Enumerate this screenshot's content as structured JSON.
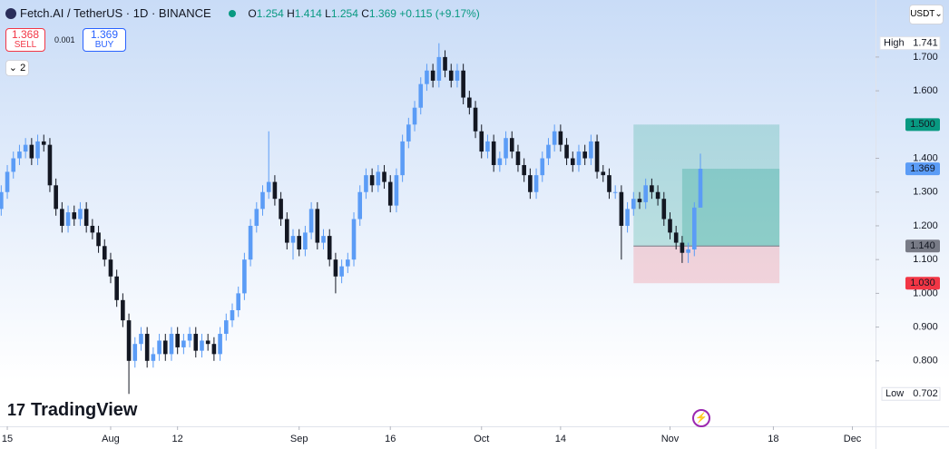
{
  "chart_data": {
    "type": "candlestick",
    "title": "Fetch.AI / TetherUS · 1D · BINANCE",
    "ohlc": [
      {
        "key": "O",
        "value": "1.254"
      },
      {
        "key": "H",
        "value": "1.414"
      },
      {
        "key": "L",
        "value": "1.254"
      },
      {
        "key": "C",
        "value": "1.369"
      }
    ],
    "change": "+0.115 (+9.17%)",
    "sell": {
      "price": "1.368",
      "label": "SELL"
    },
    "spread": "0.001",
    "buy": {
      "price": "1.369",
      "label": "BUY"
    },
    "indicators": "2",
    "currency": "USDT",
    "brand": "TradingView",
    "up_color": "#5b9cf6",
    "down_color": "#131722",
    "x": [
      -1,
      0,
      1,
      2,
      3,
      4,
      5,
      6,
      7,
      8,
      9,
      10,
      11,
      12,
      13,
      14,
      15,
      16,
      17,
      18,
      19,
      20,
      21,
      22,
      23,
      24,
      25,
      26,
      27,
      28,
      29,
      30,
      31,
      32,
      33,
      34,
      35,
      36,
      37,
      38,
      39,
      40,
      41,
      42,
      43,
      44,
      45,
      46,
      47,
      48,
      49,
      50,
      51,
      52,
      53,
      54,
      55,
      56,
      57,
      58,
      59,
      60,
      61,
      62,
      63,
      64,
      65,
      66,
      67,
      68,
      69,
      70,
      71,
      72,
      73,
      74,
      75,
      76,
      77,
      78,
      79,
      80,
      81,
      82,
      83,
      84,
      85,
      86,
      87,
      88,
      89,
      90,
      91,
      92,
      93,
      94,
      95,
      96,
      97,
      98,
      99,
      100,
      101,
      102,
      103,
      104,
      105,
      106,
      107,
      108,
      109,
      110,
      111,
      112,
      113,
      114
    ],
    "open": [
      1.25,
      1.3,
      1.36,
      1.4,
      1.42,
      1.44,
      1.4,
      1.45,
      1.44,
      1.32,
      1.25,
      1.2,
      1.24,
      1.22,
      1.25,
      1.2,
      1.18,
      1.14,
      1.1,
      1.05,
      0.98,
      0.92,
      0.8,
      0.85,
      0.88,
      0.8,
      0.82,
      0.86,
      0.82,
      0.88,
      0.84,
      0.86,
      0.88,
      0.83,
      0.86,
      0.85,
      0.82,
      0.88,
      0.92,
      0.95,
      1.0,
      1.1,
      1.2,
      1.25,
      1.3,
      1.33,
      1.28,
      1.22,
      1.15,
      1.17,
      1.13,
      1.18,
      1.25,
      1.15,
      1.17,
      1.1,
      1.05,
      1.08,
      1.1,
      1.22,
      1.3,
      1.35,
      1.32,
      1.36,
      1.33,
      1.26,
      1.35,
      1.45,
      1.5,
      1.55,
      1.62,
      1.66,
      1.63,
      1.7,
      1.66,
      1.63,
      1.66,
      1.58,
      1.55,
      1.48,
      1.42,
      1.45,
      1.38,
      1.4,
      1.46,
      1.42,
      1.38,
      1.35,
      1.3,
      1.35,
      1.4,
      1.44,
      1.48,
      1.44,
      1.4,
      1.38,
      1.42,
      1.4,
      1.45,
      1.36,
      1.35,
      1.3,
      1.3,
      1.2,
      1.25,
      1.28,
      1.27,
      1.32,
      1.3,
      1.28,
      1.22,
      1.18,
      1.15,
      1.12,
      1.13,
      1.254
    ],
    "high": [
      1.32,
      1.38,
      1.42,
      1.44,
      1.46,
      1.46,
      1.47,
      1.47,
      1.46,
      1.34,
      1.27,
      1.26,
      1.26,
      1.27,
      1.27,
      1.22,
      1.2,
      1.16,
      1.12,
      1.07,
      1.0,
      0.94,
      0.87,
      0.9,
      0.9,
      0.84,
      0.88,
      0.88,
      0.9,
      0.9,
      0.88,
      0.9,
      0.9,
      0.88,
      0.88,
      0.87,
      0.9,
      0.94,
      0.97,
      1.02,
      1.12,
      1.22,
      1.27,
      1.32,
      1.48,
      1.35,
      1.3,
      1.24,
      1.19,
      1.19,
      1.2,
      1.27,
      1.27,
      1.19,
      1.19,
      1.12,
      1.1,
      1.12,
      1.24,
      1.32,
      1.37,
      1.37,
      1.38,
      1.38,
      1.35,
      1.37,
      1.47,
      1.52,
      1.57,
      1.64,
      1.68,
      1.68,
      1.741,
      1.72,
      1.68,
      1.68,
      1.68,
      1.6,
      1.57,
      1.5,
      1.47,
      1.47,
      1.42,
      1.48,
      1.48,
      1.44,
      1.4,
      1.37,
      1.37,
      1.42,
      1.46,
      1.5,
      1.5,
      1.46,
      1.42,
      1.44,
      1.44,
      1.47,
      1.47,
      1.38,
      1.37,
      1.32,
      1.32,
      1.27,
      1.3,
      1.3,
      1.34,
      1.34,
      1.32,
      1.3,
      1.24,
      1.2,
      1.17,
      1.15,
      1.27,
      1.414
    ],
    "low": [
      1.23,
      1.28,
      1.34,
      1.38,
      1.4,
      1.38,
      1.38,
      1.42,
      1.3,
      1.23,
      1.18,
      1.18,
      1.2,
      1.2,
      1.18,
      1.16,
      1.12,
      1.08,
      1.03,
      0.96,
      0.9,
      0.702,
      0.78,
      0.83,
      0.78,
      0.78,
      0.8,
      0.8,
      0.8,
      0.82,
      0.82,
      0.84,
      0.81,
      0.81,
      0.83,
      0.8,
      0.8,
      0.86,
      0.9,
      0.93,
      0.98,
      1.08,
      1.18,
      1.23,
      1.28,
      1.26,
      1.2,
      1.13,
      1.1,
      1.11,
      1.11,
      1.16,
      1.13,
      1.13,
      1.08,
      1.0,
      1.03,
      1.06,
      1.08,
      1.2,
      1.28,
      1.3,
      1.3,
      1.31,
      1.24,
      1.24,
      1.33,
      1.43,
      1.48,
      1.53,
      1.6,
      1.61,
      1.61,
      1.64,
      1.61,
      1.61,
      1.56,
      1.53,
      1.46,
      1.4,
      1.4,
      1.36,
      1.36,
      1.38,
      1.4,
      1.36,
      1.33,
      1.28,
      1.28,
      1.33,
      1.38,
      1.42,
      1.42,
      1.38,
      1.36,
      1.36,
      1.38,
      1.38,
      1.34,
      1.33,
      1.28,
      1.28,
      1.1,
      1.18,
      1.23,
      1.25,
      1.25,
      1.28,
      1.26,
      1.2,
      1.16,
      1.13,
      1.09,
      1.09,
      1.11,
      1.254
    ],
    "close": [
      1.3,
      1.36,
      1.4,
      1.42,
      1.44,
      1.4,
      1.45,
      1.44,
      1.32,
      1.25,
      1.2,
      1.24,
      1.22,
      1.25,
      1.2,
      1.18,
      1.14,
      1.1,
      1.05,
      0.98,
      0.92,
      0.8,
      0.85,
      0.88,
      0.8,
      0.82,
      0.86,
      0.82,
      0.88,
      0.84,
      0.86,
      0.88,
      0.83,
      0.86,
      0.85,
      0.82,
      0.88,
      0.92,
      0.95,
      1.0,
      1.1,
      1.2,
      1.25,
      1.3,
      1.33,
      1.28,
      1.22,
      1.15,
      1.17,
      1.13,
      1.18,
      1.25,
      1.15,
      1.17,
      1.1,
      1.05,
      1.08,
      1.1,
      1.22,
      1.3,
      1.35,
      1.32,
      1.36,
      1.33,
      1.26,
      1.35,
      1.45,
      1.5,
      1.55,
      1.62,
      1.66,
      1.63,
      1.7,
      1.66,
      1.63,
      1.66,
      1.58,
      1.55,
      1.48,
      1.42,
      1.45,
      1.38,
      1.4,
      1.46,
      1.42,
      1.38,
      1.35,
      1.3,
      1.35,
      1.4,
      1.44,
      1.48,
      1.44,
      1.4,
      1.38,
      1.42,
      1.4,
      1.45,
      1.36,
      1.35,
      1.3,
      1.3,
      1.2,
      1.25,
      1.28,
      1.27,
      1.32,
      1.3,
      1.28,
      1.22,
      1.18,
      1.15,
      1.12,
      1.13,
      1.254,
      1.369
    ],
    "xlim": [
      -1.2,
      142.8
    ],
    "xticks": [
      {
        "value": 0,
        "label": "15"
      },
      {
        "value": 17,
        "label": "Aug"
      },
      {
        "value": 28,
        "label": "12"
      },
      {
        "value": 48,
        "label": "Sep"
      },
      {
        "value": 63,
        "label": "16"
      },
      {
        "value": 78,
        "label": "Oct"
      },
      {
        "value": 91,
        "label": "14"
      },
      {
        "value": 109,
        "label": "Nov"
      },
      {
        "value": 126,
        "label": "18"
      },
      {
        "value": 139,
        "label": "Dec"
      }
    ],
    "ylim": [
      0.606,
      1.869
    ],
    "yticks": [
      {
        "value": 0.8,
        "label": "0.800"
      },
      {
        "value": 0.9,
        "label": "0.900"
      },
      {
        "value": 1.0,
        "label": "1.000"
      },
      {
        "value": 1.1,
        "label": "1.100"
      },
      {
        "value": 1.2,
        "label": "1.200"
      },
      {
        "value": 1.3,
        "label": "1.300"
      },
      {
        "value": 1.4,
        "label": "1.400"
      },
      {
        "value": 1.6,
        "label": "1.600"
      },
      {
        "value": 1.7,
        "label": "1.700"
      }
    ],
    "high_marker": {
      "name": "High",
      "value": 1.741,
      "label": "1.741"
    },
    "low_marker": {
      "name": "Low",
      "value": 0.702,
      "label": "0.702"
    },
    "last_price": {
      "value": 1.369,
      "label": "1.369"
    },
    "position": {
      "x": [
        103,
        127
      ],
      "inner_x": 111,
      "target": {
        "value": 1.5,
        "label": "1.500"
      },
      "entry": {
        "value": 1.14,
        "label": "1.140"
      },
      "stop": {
        "value": 1.03,
        "label": "1.030"
      }
    }
  }
}
